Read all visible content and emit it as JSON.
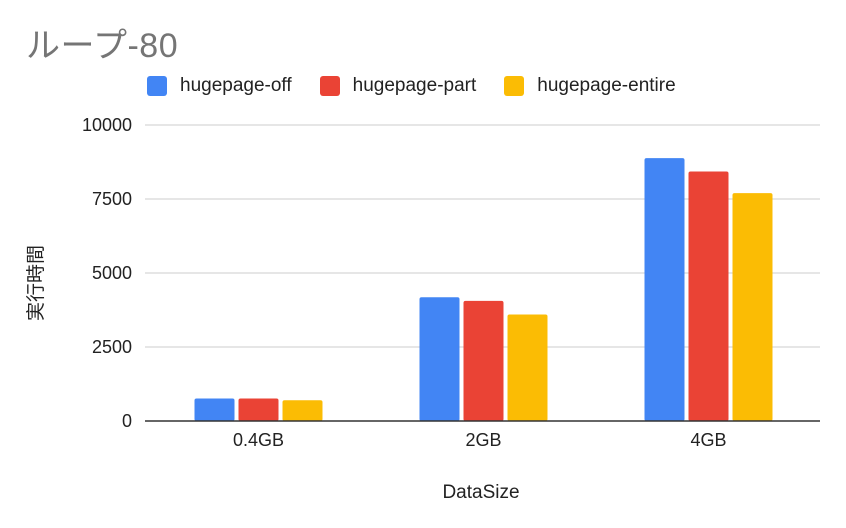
{
  "chart_data": {
    "type": "bar",
    "title": "ループ-80",
    "xlabel": "DataSize",
    "ylabel": "実行時間",
    "categories": [
      "0.4GB",
      "2GB",
      "4GB"
    ],
    "ylim": [
      0,
      10000
    ],
    "yticks": [
      0,
      2500,
      5000,
      7500,
      10000
    ],
    "grid": true,
    "legend_position": "top",
    "series": [
      {
        "name": "hugepage-off",
        "color": "#4285F4",
        "values": [
          760,
          4180,
          8880
        ]
      },
      {
        "name": "hugepage-part",
        "color": "#EA4335",
        "values": [
          760,
          4060,
          8430
        ]
      },
      {
        "name": "hugepage-entire",
        "color": "#FBBC04",
        "values": [
          700,
          3600,
          7700
        ]
      }
    ]
  }
}
